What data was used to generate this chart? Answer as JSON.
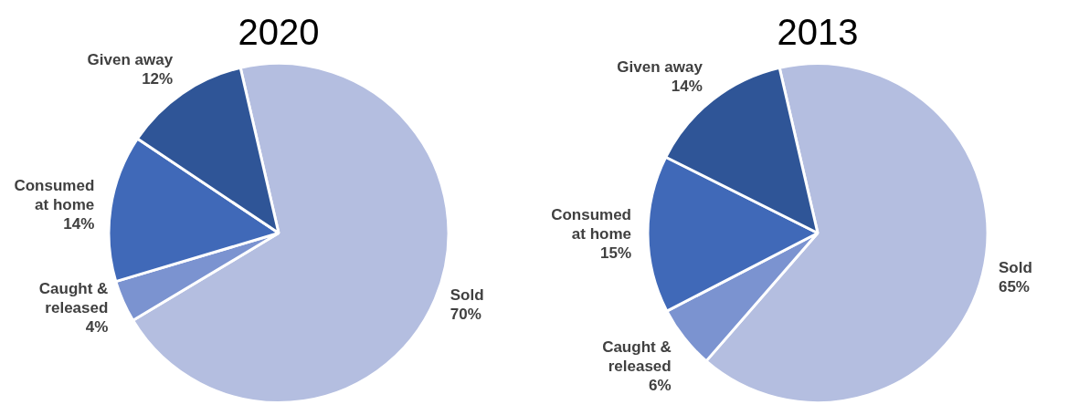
{
  "chart_data": [
    {
      "type": "pie",
      "title": "2020",
      "categories": [
        "Sold",
        "Caught & released",
        "Consumed at home",
        "Given away"
      ],
      "values": [
        70,
        4,
        14,
        12
      ],
      "value_labels": [
        "70%",
        "4%",
        "14%",
        "12%"
      ],
      "colors": [
        "#b4bee0",
        "#7b93d0",
        "#4069b8",
        "#2f5597"
      ]
    },
    {
      "type": "pie",
      "title": "2013",
      "categories": [
        "Sold",
        "Caught & released",
        "Consumed at home",
        "Given away"
      ],
      "values": [
        65,
        6,
        15,
        14
      ],
      "value_labels": [
        "65%",
        "6%",
        "15%",
        "14%"
      ],
      "colors": [
        "#b4bee0",
        "#7b93d0",
        "#4069b8",
        "#2f5597"
      ]
    }
  ]
}
